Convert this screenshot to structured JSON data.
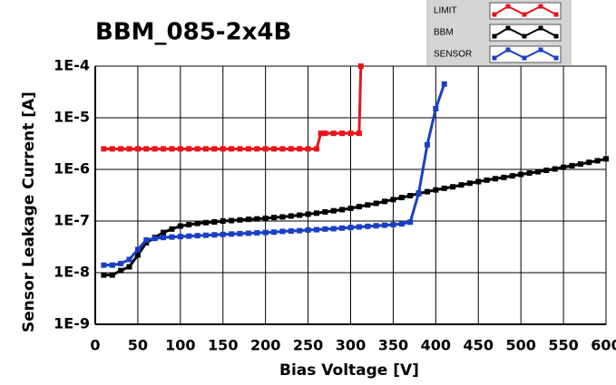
{
  "chart_data": {
    "type": "line",
    "title": "BBM_085-2x4B",
    "x_label": "Bias Voltage [V]",
    "y_label": "Sensor Leakage Current [A]",
    "ylog": true,
    "grid": true,
    "legend": "top-right",
    "xlim": [
      0,
      600
    ],
    "xticks": [
      0,
      50,
      100,
      150,
      200,
      250,
      300,
      350,
      400,
      450,
      500,
      550,
      600
    ],
    "ylim": [
      1e-09,
      0.0001
    ],
    "yticks": [
      {
        "value": 1e-09,
        "label": "1E-9"
      },
      {
        "value": 1e-08,
        "label": "1E-8"
      },
      {
        "value": 1e-07,
        "label": "1E-7"
      },
      {
        "value": 1e-06,
        "label": "1E-6"
      },
      {
        "value": 1e-05,
        "label": "1E-5"
      },
      {
        "value": 0.0001,
        "label": "1E-4"
      }
    ],
    "series": [
      {
        "name": "LIMIT",
        "color": "#e8141b",
        "x": [
          10,
          20,
          30,
          40,
          50,
          60,
          70,
          80,
          90,
          100,
          110,
          120,
          130,
          140,
          150,
          160,
          170,
          180,
          190,
          200,
          210,
          220,
          230,
          240,
          250,
          260,
          265,
          270,
          280,
          290,
          300,
          310,
          312
        ],
        "values": [
          2.5e-06,
          2.5e-06,
          2.5e-06,
          2.5e-06,
          2.5e-06,
          2.5e-06,
          2.5e-06,
          2.5e-06,
          2.5e-06,
          2.5e-06,
          2.5e-06,
          2.5e-06,
          2.5e-06,
          2.5e-06,
          2.5e-06,
          2.5e-06,
          2.5e-06,
          2.5e-06,
          2.5e-06,
          2.5e-06,
          2.5e-06,
          2.5e-06,
          2.5e-06,
          2.5e-06,
          2.5e-06,
          2.5e-06,
          5e-06,
          5e-06,
          5e-06,
          5e-06,
          5e-06,
          5e-06,
          0.0001
        ]
      },
      {
        "name": "BBM",
        "color": "#000000",
        "x": [
          10,
          20,
          30,
          40,
          50,
          60,
          70,
          80,
          90,
          100,
          110,
          120,
          130,
          140,
          150,
          160,
          170,
          180,
          190,
          200,
          210,
          220,
          230,
          240,
          250,
          260,
          270,
          280,
          290,
          300,
          310,
          320,
          330,
          340,
          350,
          360,
          370,
          380,
          390,
          400,
          410,
          420,
          430,
          440,
          450,
          460,
          470,
          480,
          490,
          500,
          510,
          520,
          530,
          540,
          550,
          560,
          570,
          580,
          590,
          600
        ],
        "values": [
          9e-09,
          9e-09,
          1.1e-08,
          1.3e-08,
          2.2e-08,
          3.8e-08,
          4.8e-08,
          6e-08,
          7e-08,
          8e-08,
          8.5e-08,
          9e-08,
          9.3e-08,
          9.6e-08,
          1e-07,
          1.02e-07,
          1.05e-07,
          1.08e-07,
          1.1e-07,
          1.13e-07,
          1.17e-07,
          1.2e-07,
          1.25e-07,
          1.3e-07,
          1.36e-07,
          1.42e-07,
          1.5e-07,
          1.58e-07,
          1.66e-07,
          1.76e-07,
          1.9e-07,
          2.05e-07,
          2.2e-07,
          2.4e-07,
          2.6e-07,
          2.85e-07,
          3.1e-07,
          3.4e-07,
          3.7e-07,
          4e-07,
          4.3e-07,
          4.6e-07,
          5e-07,
          5.4e-07,
          5.8e-07,
          6.2e-07,
          6.6e-07,
          7e-07,
          7.5e-07,
          8e-07,
          8.5e-07,
          9e-07,
          9.6e-07,
          1.02e-06,
          1.1e-06,
          1.18e-06,
          1.27e-06,
          1.37e-06,
          1.47e-06,
          1.6e-06
        ]
      },
      {
        "name": "SENSOR",
        "color": "#1a3fc4",
        "x": [
          10,
          20,
          30,
          40,
          50,
          60,
          70,
          80,
          90,
          100,
          110,
          120,
          130,
          140,
          150,
          160,
          170,
          180,
          190,
          200,
          210,
          220,
          230,
          240,
          250,
          260,
          270,
          280,
          290,
          300,
          310,
          320,
          330,
          340,
          350,
          360,
          370,
          380,
          390,
          400,
          410
        ],
        "values": [
          1.4e-08,
          1.4e-08,
          1.5e-08,
          1.8e-08,
          2.8e-08,
          4.3e-08,
          4.6e-08,
          4.8e-08,
          4.9e-08,
          5e-08,
          5.1e-08,
          5.2e-08,
          5.3e-08,
          5.4e-08,
          5.5e-08,
          5.6e-08,
          5.7e-08,
          5.8e-08,
          5.9e-08,
          6e-08,
          6.1e-08,
          6.3e-08,
          6.4e-08,
          6.5e-08,
          6.7e-08,
          6.8e-08,
          7e-08,
          7.1e-08,
          7.3e-08,
          7.5e-08,
          7.7e-08,
          7.9e-08,
          8.1e-08,
          8.3e-08,
          8.5e-08,
          8.8e-08,
          9.5e-08,
          3.5e-07,
          3e-06,
          1.5e-05,
          4.5e-05
        ]
      }
    ]
  }
}
